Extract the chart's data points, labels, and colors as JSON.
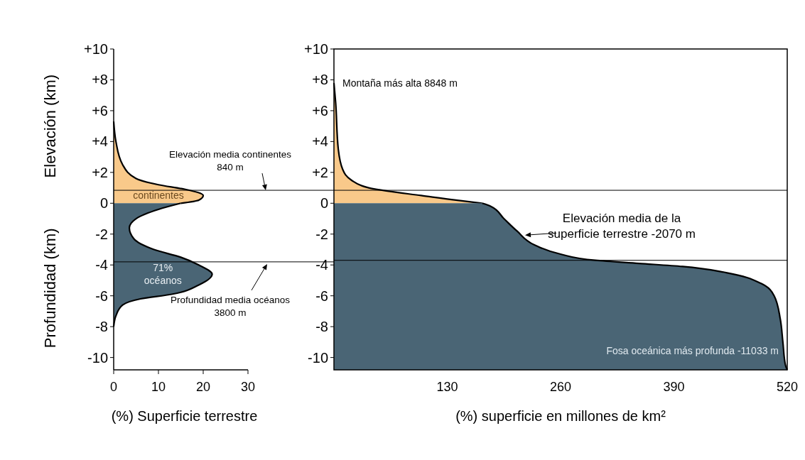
{
  "chart_data": [
    {
      "type": "area",
      "orientation": "horizontal",
      "xlabel": "(%) Superficie terrestre",
      "ylabel": "Elevación (km)",
      "annotations": [
        "Profundidad (km)"
      ],
      "xlim": [
        0,
        30
      ],
      "ylim": [
        -10.8,
        10
      ],
      "xticks": [
        0,
        10,
        20,
        30
      ],
      "yticks": [
        {
          "value": 10,
          "label": "+10"
        },
        {
          "value": 8,
          "label": "+8"
        },
        {
          "value": 6,
          "label": "+6"
        },
        {
          "value": 4,
          "label": "+4"
        },
        {
          "value": 2,
          "label": "+2"
        },
        0,
        -2,
        -4,
        -6,
        -8,
        -10
      ],
      "series": [
        {
          "name": "continentes",
          "color": "#f9c98a",
          "x": [
            5.3,
            4,
            2.5,
            1.6,
            1.2,
            0.9,
            0.5,
            0.2,
            0
          ],
          "values": [
            0,
            0.5,
            2,
            5,
            10,
            16,
            20,
            19,
            15
          ]
        },
        {
          "name": "71% océanos",
          "color": "#4a6575",
          "x": [
            0,
            -0.4,
            -1,
            -1.6,
            -2.3,
            -3,
            -3.5,
            -4,
            -4.6,
            -5.3,
            -5.9,
            -6.2,
            -6.6,
            -7.3,
            -8
          ],
          "values": [
            15,
            10,
            5,
            3.5,
            4.5,
            9,
            15,
            19,
            22,
            19,
            13,
            6,
            2,
            0.5,
            0
          ]
        }
      ],
      "ref_lines": [
        {
          "axis": "y",
          "value": 0.84,
          "label": "Elevación media continentes 840 m"
        },
        {
          "axis": "y",
          "value": -3.8,
          "label": "Profundidad media océanos 3800 m"
        }
      ]
    },
    {
      "type": "area",
      "orientation": "horizontal",
      "xlabel": "(%) superficie en millones de km²",
      "xlim": [
        0,
        520
      ],
      "ylim": [
        -10.8,
        10
      ],
      "xticks": [
        130,
        260,
        390,
        520
      ],
      "yticks": [
        {
          "value": 10,
          "label": "+10"
        },
        {
          "value": 8,
          "label": "+8"
        },
        {
          "value": 6,
          "label": "+6"
        },
        {
          "value": 4,
          "label": "+4"
        },
        {
          "value": 2,
          "label": "+2"
        },
        0,
        -2,
        -4,
        -6,
        -8,
        -10
      ],
      "series": [
        {
          "color": "#f9c98a",
          "x": [
            7.8,
            6.5,
            3.5,
            2.2,
            1.5,
            1,
            0.8,
            0.5,
            0.2,
            0
          ],
          "values": [
            0,
            2,
            5,
            10,
            20,
            40,
            60,
            100,
            140,
            170
          ]
        },
        {
          "color": "#4a6575",
          "x": [
            0,
            -0.2,
            -1,
            -1.8,
            -2.7,
            -3.3,
            -3.7,
            -3.9,
            -4.1,
            -4.5,
            -5.2,
            -6,
            -7.5,
            -9,
            -10.5,
            -10.8
          ],
          "values": [
            170,
            180,
            195,
            210,
            230,
            260,
            300,
            350,
            400,
            450,
            490,
            505,
            512,
            515,
            518,
            520
          ]
        }
      ],
      "ref_lines": [
        {
          "axis": "y",
          "value": 0.84
        },
        {
          "axis": "y",
          "value": -3.7
        }
      ],
      "annotations": [
        {
          "text": "Montaña más alta 8848 m",
          "x": 0,
          "y": 7.8
        },
        {
          "text": "Elevación media de la superficie terrestre -2070 m",
          "x": 216,
          "y": -2.07
        },
        {
          "text": "Fosa  oceánica más profunda  -11033 m",
          "x": 520,
          "y": -10.8
        }
      ]
    }
  ]
}
